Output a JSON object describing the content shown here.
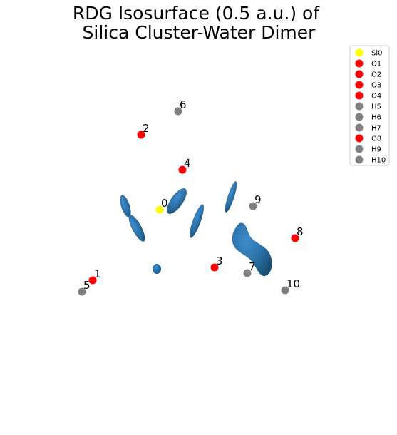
{
  "chart_data": {
    "type": "scatter",
    "title_lines": [
      "RDG Isosurface (0.5 a.u.) of",
      "Silica Cluster-Water Dimer"
    ],
    "axes_visible": false,
    "legend_position": "top-right",
    "atoms": [
      {
        "label": "0",
        "name": "Si0",
        "color": "#ffff00"
      },
      {
        "label": "1",
        "name": "O1",
        "color": "#ff0000"
      },
      {
        "label": "2",
        "name": "O2",
        "color": "#ff0000"
      },
      {
        "label": "3",
        "name": "O3",
        "color": "#ff0000"
      },
      {
        "label": "4",
        "name": "O4",
        "color": "#ff0000"
      },
      {
        "label": "5",
        "name": "H5",
        "color": "#808080"
      },
      {
        "label": "6",
        "name": "H6",
        "color": "#808080"
      },
      {
        "label": "7",
        "name": "H7",
        "color": "#808080"
      },
      {
        "label": "8",
        "name": "O8",
        "color": "#ff0000"
      },
      {
        "label": "9",
        "name": "H9",
        "color": "#808080"
      },
      {
        "label": "10",
        "name": "H10",
        "color": "#808080"
      }
    ],
    "isosurface_color": "#2e77ad"
  }
}
